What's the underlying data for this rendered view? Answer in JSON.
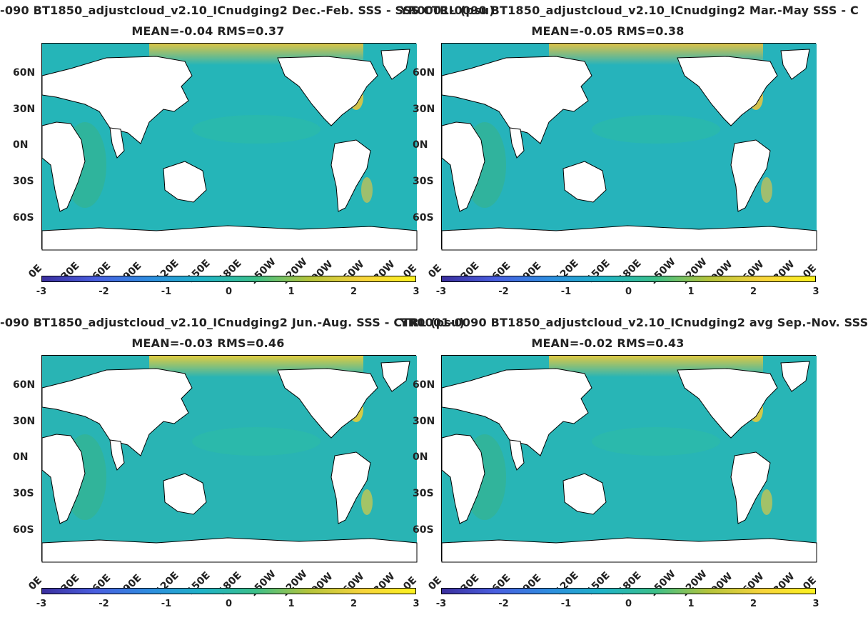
{
  "colorbar": {
    "ticks": [
      "-3",
      "-2",
      "-1",
      "0",
      "1",
      "2",
      "3"
    ],
    "colors": [
      "#3b2f9e",
      "#4a5fe0",
      "#2f8de0",
      "#1fb3c8",
      "#3cc08a",
      "#b4c43c",
      "#f7d43c",
      "#fbf21f"
    ]
  },
  "axes": {
    "xticks": [
      "0E",
      "30E",
      "60E",
      "90E",
      "120E",
      "150E",
      "180E",
      "150W",
      "120W",
      "90W",
      "60W",
      "30W",
      "0E"
    ],
    "yticks": [
      "60N",
      "30N",
      "0N",
      "30S",
      "60S"
    ]
  },
  "panels": [
    {
      "title": "-090 BT1850_adjustcloud_v2.10_ICnudging2  Dec.-Feb. SSS - SSS CTRL (psu)",
      "stats": "MEAN=-0.04   RMS=0.37",
      "ocean_color": "#25b5b8",
      "accent_color": "#f0c73a"
    },
    {
      "title": "YR0001-0090 BT1850_adjustcloud_v2.10_ICnudging2 Mar.-May SSS - C",
      "stats": "MEAN=-0.05   RMS=0.38",
      "ocean_color": "#26b3bb",
      "accent_color": "#f1c43c"
    },
    {
      "title": "-090 BT1850_adjustcloud_v2.10_ICnudging2 Jun.-Aug. SSS - CTRL (psu)",
      "stats": "MEAN=-0.03   RMS=0.46",
      "ocean_color": "#29b4b4",
      "accent_color": "#f5cf33"
    },
    {
      "title": "YR0001-0090 BT1850_adjustcloud_v2.10_ICnudging2 avg Sep.-Nov. SSS",
      "stats": "MEAN=-0.02   RMS=0.43",
      "ocean_color": "#28b5b6",
      "accent_color": "#f3cb36"
    }
  ]
}
